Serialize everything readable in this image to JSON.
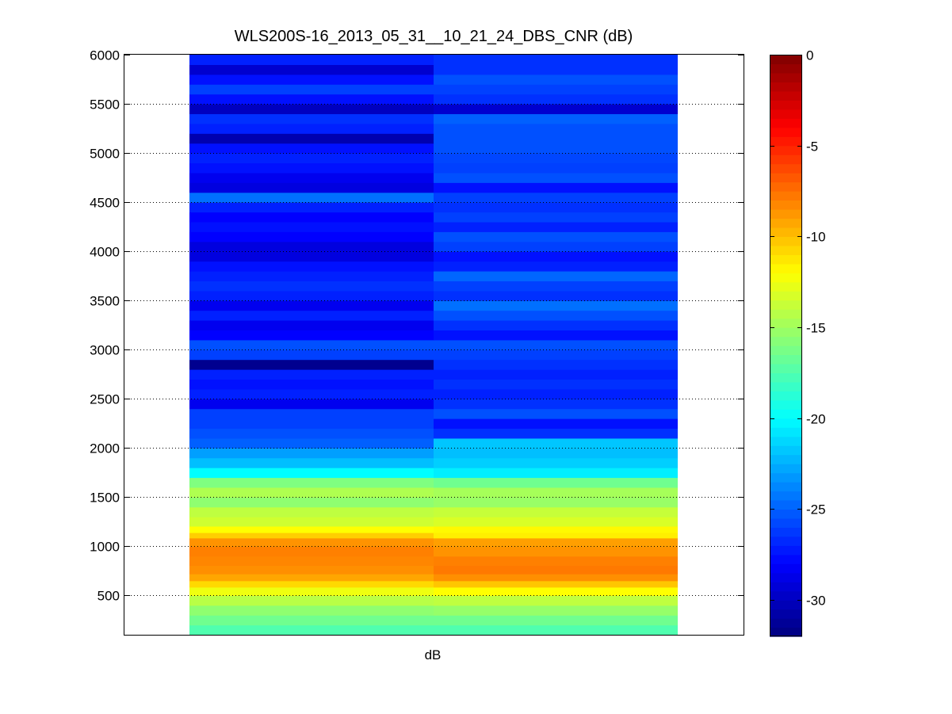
{
  "chart_data": [
    {
      "type": "heatmap",
      "title": "WLS200S-16_2013_05_31__10_21_24_DBS_CNR (dB)",
      "xlabel": "dB",
      "ylabel": "",
      "ylim": [
        100,
        6000
      ],
      "yticks": [
        500,
        1000,
        1500,
        2000,
        2500,
        3000,
        3500,
        4000,
        4500,
        5000,
        5500,
        6000
      ],
      "y_tick_labels": [
        "500",
        "1000",
        "1500",
        "2000",
        "2500",
        "3000",
        "3500",
        "4000",
        "4500",
        "5000",
        "5500",
        "6000"
      ],
      "grid": "horizontal dotted",
      "colormap": "jet",
      "color_range": [
        -32,
        0
      ],
      "colorbar_ticks": [
        0,
        -5,
        -10,
        -15,
        -20,
        -25,
        -30
      ],
      "colorbar_tick_labels": [
        "0",
        "-5",
        "-10",
        "-15",
        "-20",
        "-25",
        "-30"
      ],
      "colorbar_position": "right",
      "columns": 2,
      "range_bins": [
        [
          150,
          -17.5,
          -17.5
        ],
        [
          250,
          -16.5,
          -16.5
        ],
        [
          350,
          -15.5,
          -15.3
        ],
        [
          450,
          -14.2,
          -14.0
        ],
        [
          550,
          -12.5,
          -12.0
        ],
        [
          620,
          -10.8,
          -10.2
        ],
        [
          680,
          -9.2,
          -8.5
        ],
        [
          760,
          -8.5,
          -7.8
        ],
        [
          850,
          -8.2,
          -8.0
        ],
        [
          950,
          -8.0,
          -8.6
        ],
        [
          1050,
          -8.6,
          -9.0
        ],
        [
          1120,
          -10.5,
          -11.5
        ],
        [
          1160,
          -12.0,
          -11.8
        ],
        [
          1250,
          -13.5,
          -13.2
        ],
        [
          1350,
          -14.0,
          -13.8
        ],
        [
          1450,
          -15.5,
          -15.2
        ],
        [
          1550,
          -14.5,
          -14.8
        ],
        [
          1650,
          -16.0,
          -16.5
        ],
        [
          1750,
          -20.0,
          -20.5
        ],
        [
          1850,
          -22.0,
          -21.5
        ],
        [
          1950,
          -23.0,
          -22.0
        ],
        [
          2050,
          -25.0,
          -21.8
        ],
        [
          2150,
          -25.5,
          -26.5
        ],
        [
          2250,
          -26.0,
          -27.5
        ],
        [
          2350,
          -26.0,
          -25.5
        ],
        [
          2450,
          -28.5,
          -26.5
        ],
        [
          2550,
          -27.0,
          -27.0
        ],
        [
          2650,
          -27.5,
          -26.5
        ],
        [
          2750,
          -27.0,
          -27.0
        ],
        [
          2850,
          -31.5,
          -26.5
        ],
        [
          2950,
          -26.0,
          -26.0
        ],
        [
          3050,
          -25.5,
          -25.5
        ],
        [
          3150,
          -28.0,
          -27.5
        ],
        [
          3250,
          -28.5,
          -26.5
        ],
        [
          3350,
          -27.0,
          -25.5
        ],
        [
          3450,
          -28.5,
          -24.5
        ],
        [
          3550,
          -27.0,
          -26.5
        ],
        [
          3650,
          -26.5,
          -26.0
        ],
        [
          3750,
          -27.0,
          -24.8
        ],
        [
          3850,
          -27.5,
          -27.0
        ],
        [
          3950,
          -29.0,
          -27.5
        ],
        [
          4050,
          -29.0,
          -26.0
        ],
        [
          4150,
          -28.0,
          -25.5
        ],
        [
          4250,
          -27.5,
          -27.0
        ],
        [
          4350,
          -28.0,
          -26.0
        ],
        [
          4450,
          -27.0,
          -26.5
        ],
        [
          4550,
          -24.5,
          -26.0
        ],
        [
          4650,
          -29.0,
          -27.5
        ],
        [
          4750,
          -28.5,
          -25.5
        ],
        [
          4850,
          -27.5,
          -26.0
        ],
        [
          4950,
          -27.0,
          -25.8
        ],
        [
          5050,
          -27.5,
          -25.5
        ],
        [
          5150,
          -30.5,
          -25.5
        ],
        [
          5250,
          -27.0,
          -25.5
        ],
        [
          5350,
          -26.5,
          -25.0
        ],
        [
          5450,
          -30.0,
          -29.5
        ],
        [
          5550,
          -27.5,
          -26.5
        ],
        [
          5650,
          -26.0,
          -26.0
        ],
        [
          5750,
          -27.5,
          -25.5
        ],
        [
          5850,
          -29.5,
          -26.5
        ],
        [
          5950,
          -27.0,
          -26.5
        ]
      ]
    }
  ]
}
